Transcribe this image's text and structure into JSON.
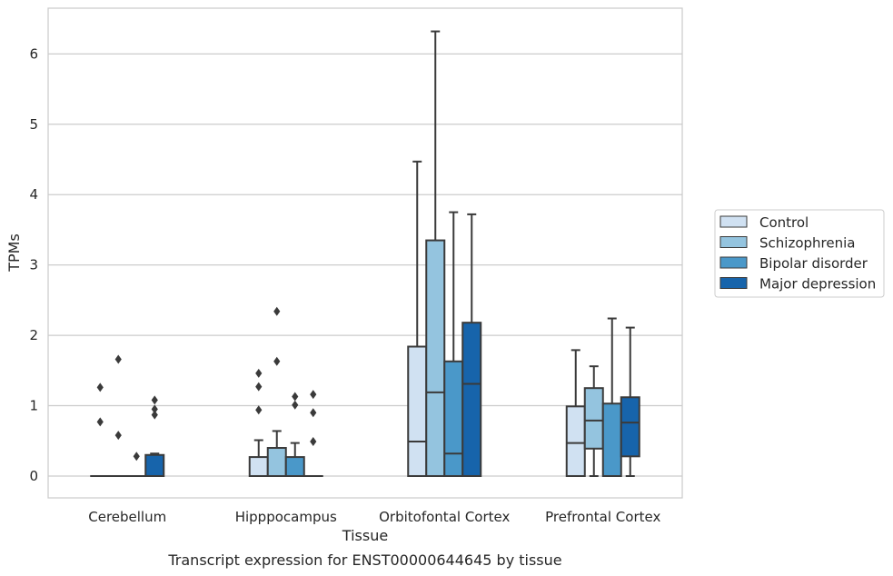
{
  "chart_data": {
    "type": "boxplot",
    "xlabel": "Tissue",
    "ylabel": "TPMs",
    "caption": "Transcript expression for ENST00000644645 by tissue",
    "ylim": [
      -0.31,
      6.65
    ],
    "yticks": [
      "0",
      "1",
      "2",
      "3",
      "4",
      "5",
      "6"
    ],
    "grid": "horizontal",
    "legend_position": "right",
    "categories": [
      "Cerebellum",
      "Hipppocampus",
      "Orbitofontal Cortex",
      "Prefrontal Cortex"
    ],
    "series": [
      {
        "name": "Control",
        "color": "#d0e1f2",
        "boxes": [
          {
            "whislo": 0,
            "q1": 0,
            "med": 0,
            "q3": 0,
            "whishi": 0,
            "fliers": [
              0.77,
              1.26
            ]
          },
          {
            "whislo": 0,
            "q1": 0,
            "med": 0,
            "q3": 0.27,
            "whishi": 0.51,
            "fliers": [
              0.94,
              1.27,
              1.46
            ]
          },
          {
            "whislo": 0,
            "q1": 0,
            "med": 0.49,
            "q3": 1.84,
            "whishi": 4.47,
            "fliers": []
          },
          {
            "whislo": 0,
            "q1": 0,
            "med": 0.47,
            "q3": 0.99,
            "whishi": 1.79,
            "fliers": []
          }
        ]
      },
      {
        "name": "Schizophrenia",
        "color": "#94c4df",
        "boxes": [
          {
            "whislo": 0,
            "q1": 0,
            "med": 0,
            "q3": 0,
            "whishi": 0,
            "fliers": [
              0.58,
              1.66
            ]
          },
          {
            "whislo": 0,
            "q1": 0,
            "med": 0,
            "q3": 0.4,
            "whishi": 0.64,
            "fliers": [
              1.63,
              2.34
            ]
          },
          {
            "whislo": 0,
            "q1": 0,
            "med": 1.19,
            "q3": 3.35,
            "whishi": 6.32,
            "fliers": []
          },
          {
            "whislo": 0,
            "q1": 0.39,
            "med": 0.79,
            "q3": 1.25,
            "whishi": 1.56,
            "fliers": []
          }
        ]
      },
      {
        "name": "Bipolar disorder",
        "color": "#4a98c9",
        "boxes": [
          {
            "whislo": 0,
            "q1": 0,
            "med": 0,
            "q3": 0,
            "whishi": 0,
            "fliers": [
              0.28
            ]
          },
          {
            "whislo": 0,
            "q1": 0,
            "med": 0,
            "q3": 0.27,
            "whishi": 0.47,
            "fliers": [
              1.01,
              1.13
            ]
          },
          {
            "whislo": 0,
            "q1": 0,
            "med": 0.32,
            "q3": 1.63,
            "whishi": 3.75,
            "fliers": []
          },
          {
            "whislo": 0,
            "q1": 0,
            "med": 0,
            "q3": 1.03,
            "whishi": 2.24,
            "fliers": []
          }
        ]
      },
      {
        "name": "Major depression",
        "color": "#1764ab",
        "boxes": [
          {
            "whislo": 0,
            "q1": 0,
            "med": 0,
            "q3": 0.3,
            "whishi": 0.32,
            "fliers": [
              0.87,
              0.95,
              1.08
            ]
          },
          {
            "whislo": 0,
            "q1": 0,
            "med": 0,
            "q3": 0,
            "whishi": 0,
            "fliers": [
              0.49,
              0.9,
              1.16
            ]
          },
          {
            "whislo": 0,
            "q1": 0,
            "med": 1.31,
            "q3": 2.18,
            "whishi": 3.72,
            "fliers": []
          },
          {
            "whislo": 0,
            "q1": 0.28,
            "med": 0.76,
            "q3": 1.12,
            "whishi": 2.11,
            "fliers": []
          }
        ]
      }
    ]
  }
}
